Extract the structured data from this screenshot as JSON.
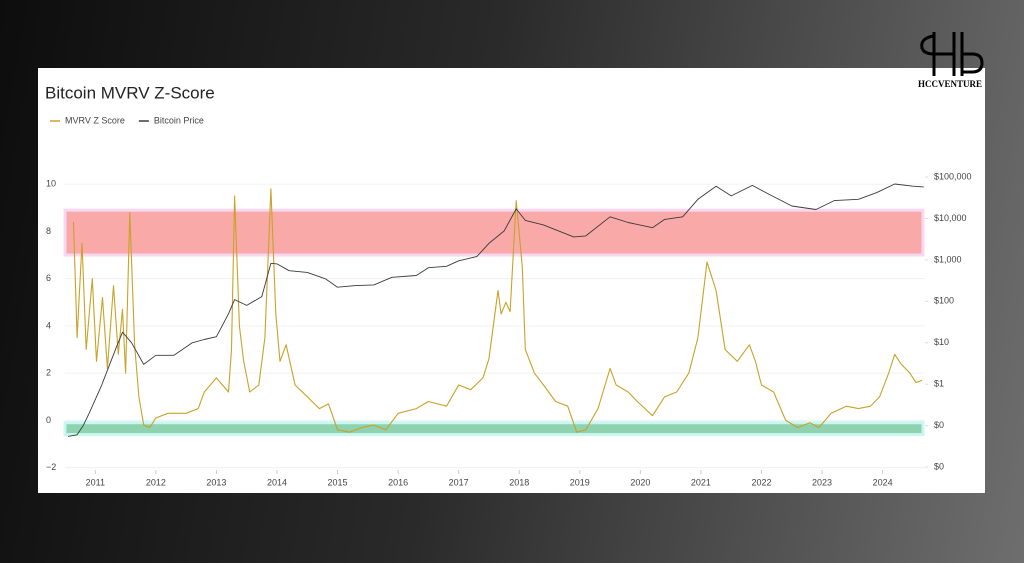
{
  "logo": "HCCVENTURE",
  "chart_data": {
    "type": "line",
    "title": "Bitcoin MVRV Z-Score",
    "xlim": [
      2010.5,
      2024.7
    ],
    "xticks": [
      2011,
      2012,
      2013,
      2014,
      2015,
      2016,
      2017,
      2018,
      2019,
      2020,
      2021,
      2022,
      2023,
      2024
    ],
    "ylim": [
      -2.1,
      10.6
    ],
    "yticks": [
      {
        "value": -2,
        "label": "−2"
      },
      0,
      2,
      4,
      6,
      8,
      10
    ],
    "y2lim": [
      0.0085,
      148000
    ],
    "y2log": true,
    "y2ticks": [
      {
        "value": 0.01,
        "label": "$0"
      },
      {
        "value": 0.1,
        "label": "$0"
      },
      {
        "value": 1,
        "label": "$1"
      },
      {
        "value": 10,
        "label": "$10"
      },
      {
        "value": 100,
        "label": "$100"
      },
      {
        "value": 1000,
        "label": "$1,000"
      },
      {
        "value": 10000,
        "label": "$10,000"
      },
      {
        "value": 100000,
        "label": "$100,000"
      }
    ],
    "grid": true,
    "bands": [
      {
        "range": [
          7,
          8.9
        ],
        "color": "#f9aaa8"
      },
      {
        "range": [
          -0.6,
          -0.1
        ],
        "color": "#8ed2b0"
      }
    ],
    "series": [
      {
        "name": "MVRV Z Score",
        "color": "#c9a227",
        "x": [
          2010.64,
          2010.7,
          2010.78,
          2010.85,
          2010.95,
          2011.02,
          2011.12,
          2011.2,
          2011.3,
          2011.38,
          2011.45,
          2011.5,
          2011.57,
          2011.65,
          2011.72,
          2011.8,
          2011.9,
          2012.0,
          2012.2,
          2012.5,
          2012.7,
          2012.8,
          2013.0,
          2013.1,
          2013.2,
          2013.25,
          2013.3,
          2013.38,
          2013.45,
          2013.55,
          2013.7,
          2013.8,
          2013.9,
          2013.98,
          2014.05,
          2014.15,
          2014.3,
          2014.5,
          2014.7,
          2014.85,
          2015.0,
          2015.2,
          2015.4,
          2015.6,
          2015.8,
          2016.0,
          2016.3,
          2016.5,
          2016.8,
          2017.0,
          2017.2,
          2017.4,
          2017.5,
          2017.65,
          2017.7,
          2017.78,
          2017.85,
          2017.95,
          2018.05,
          2018.1,
          2018.25,
          2018.4,
          2018.6,
          2018.8,
          2018.95,
          2019.1,
          2019.3,
          2019.5,
          2019.6,
          2019.8,
          2019.95,
          2020.2,
          2020.4,
          2020.6,
          2020.8,
          2020.95,
          2021.1,
          2021.25,
          2021.4,
          2021.6,
          2021.8,
          2021.9,
          2022.0,
          2022.2,
          2022.4,
          2022.6,
          2022.8,
          2022.95,
          2023.15,
          2023.4,
          2023.6,
          2023.8,
          2023.95,
          2024.1,
          2024.2,
          2024.3,
          2024.45,
          2024.55,
          2024.65
        ],
        "values": [
          8.4,
          3.5,
          7.5,
          3.0,
          6.0,
          2.5,
          5.2,
          2.2,
          5.7,
          2.8,
          4.7,
          2.0,
          8.8,
          3.2,
          1.0,
          -0.2,
          -0.3,
          0.1,
          0.3,
          0.3,
          0.5,
          1.2,
          1.8,
          1.5,
          1.2,
          3.0,
          9.5,
          4.0,
          2.5,
          1.2,
          1.5,
          3.5,
          9.8,
          4.5,
          2.5,
          3.2,
          1.5,
          1.0,
          0.5,
          0.7,
          -0.4,
          -0.5,
          -0.3,
          -0.2,
          -0.4,
          0.3,
          0.5,
          0.8,
          0.6,
          1.5,
          1.3,
          1.8,
          2.6,
          5.5,
          4.5,
          5.0,
          4.6,
          9.3,
          6.5,
          3.0,
          2.0,
          1.5,
          0.8,
          0.6,
          -0.5,
          -0.4,
          0.5,
          2.2,
          1.5,
          1.2,
          0.8,
          0.2,
          1.0,
          1.2,
          2.0,
          3.5,
          6.7,
          5.5,
          3.0,
          2.5,
          3.2,
          2.5,
          1.5,
          1.2,
          0.0,
          -0.3,
          -0.1,
          -0.3,
          0.3,
          0.6,
          0.5,
          0.6,
          1.0,
          2.0,
          2.8,
          2.4,
          2.0,
          1.6,
          1.7
        ]
      },
      {
        "name": "Bitcoin Price",
        "color": "#3a3a3a",
        "axis": "y2",
        "x": [
          2010.55,
          2010.7,
          2010.8,
          2010.9,
          2011.1,
          2011.35,
          2011.45,
          2011.6,
          2011.8,
          2012.0,
          2012.3,
          2012.6,
          2012.8,
          2013.0,
          2013.2,
          2013.3,
          2013.5,
          2013.75,
          2013.9,
          2014.0,
          2014.2,
          2014.5,
          2014.8,
          2015.0,
          2015.3,
          2015.6,
          2015.9,
          2016.3,
          2016.5,
          2016.8,
          2017.0,
          2017.3,
          2017.5,
          2017.75,
          2017.95,
          2018.1,
          2018.4,
          2018.9,
          2019.1,
          2019.5,
          2019.8,
          2020.2,
          2020.4,
          2020.7,
          2020.95,
          2021.25,
          2021.5,
          2021.85,
          2022.1,
          2022.5,
          2022.9,
          2023.2,
          2023.6,
          2023.9,
          2024.2,
          2024.5,
          2024.68
        ],
        "values": [
          0.055,
          0.06,
          0.1,
          0.2,
          0.9,
          8,
          18,
          10,
          3,
          5,
          5,
          10,
          12,
          14,
          50,
          110,
          80,
          130,
          830,
          800,
          550,
          500,
          350,
          220,
          240,
          250,
          380,
          420,
          650,
          700,
          950,
          1200,
          2500,
          5000,
          17000,
          9000,
          7000,
          3600,
          3800,
          11000,
          8000,
          6000,
          9500,
          11000,
          29000,
          60000,
          35000,
          63000,
          40000,
          20000,
          16500,
          27000,
          29000,
          42000,
          68000,
          60000,
          58000
        ]
      }
    ]
  }
}
